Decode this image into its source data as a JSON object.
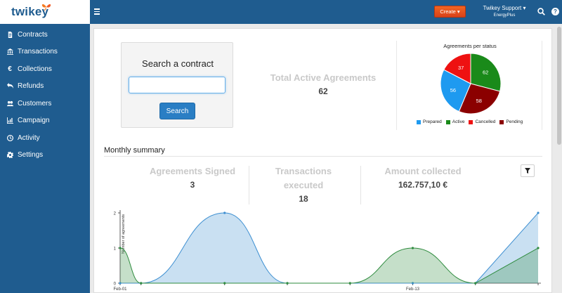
{
  "brand": {
    "name": "twikey"
  },
  "sidebar": {
    "items": [
      {
        "label": "Contracts",
        "icon": "document-icon"
      },
      {
        "label": "Transactions",
        "icon": "bank-icon"
      },
      {
        "label": "Collections",
        "icon": "euro-icon"
      },
      {
        "label": "Refunds",
        "icon": "undo-icon"
      },
      {
        "label": "Customers",
        "icon": "users-icon"
      },
      {
        "label": "Campaign",
        "icon": "bar-chart-icon"
      },
      {
        "label": "Activity",
        "icon": "clock-icon"
      },
      {
        "label": "Settings",
        "icon": "gear-icon"
      }
    ]
  },
  "topbar": {
    "create_label": "Create ▾",
    "user_name": "Twikey Support ▾",
    "user_company": "EnergyPlus",
    "help_label": "?"
  },
  "search": {
    "title": "Search a contract",
    "input_value": "",
    "button_label": "Search"
  },
  "total_active": {
    "label": "Total Active Agreements",
    "value": "62"
  },
  "pie": {
    "title": "Agreements per status",
    "slices": [
      {
        "name": "Active",
        "value": 62,
        "color": "#1a8a1a"
      },
      {
        "name": "Pending",
        "value": 58,
        "color": "#8b0000"
      },
      {
        "name": "Prepared",
        "value": 56,
        "color": "#1e9af0"
      },
      {
        "name": "Cancelled",
        "value": 37,
        "color": "#ee1111"
      }
    ],
    "legend": [
      {
        "name": "Prepared",
        "color": "#1e9af0"
      },
      {
        "name": "Active",
        "color": "#1a8a1a"
      },
      {
        "name": "Cancelled",
        "color": "#ee1111"
      },
      {
        "name": "Pending",
        "color": "#8b0000"
      }
    ]
  },
  "monthly": {
    "title": "Monthly summary",
    "signed_label": "Agreements Signed",
    "signed_value": "3",
    "tx_label": "Transactions executed",
    "tx_value": "18",
    "amount_label": "Amount collected",
    "amount_value": "162.757,10 €"
  },
  "chart_data": {
    "type": "area",
    "ylabel": "Number of agreements",
    "ylim": [
      0,
      2
    ],
    "yticks": [
      "0",
      "1",
      "2"
    ],
    "xtick_labels": [
      "Feb-01",
      "Feb-13"
    ],
    "series": [
      {
        "color": "#3d8fd1",
        "x": [
          0,
          1,
          5,
          8,
          14,
          17,
          20
        ],
        "values": [
          0,
          0,
          2,
          0,
          0,
          0,
          2
        ]
      },
      {
        "color": "#2e8b3e",
        "x": [
          0,
          1,
          5,
          8,
          11,
          14,
          17,
          20
        ],
        "values": [
          1,
          0,
          0,
          0,
          0,
          1,
          0,
          1
        ]
      }
    ],
    "x_range": [
      0,
      20
    ]
  }
}
